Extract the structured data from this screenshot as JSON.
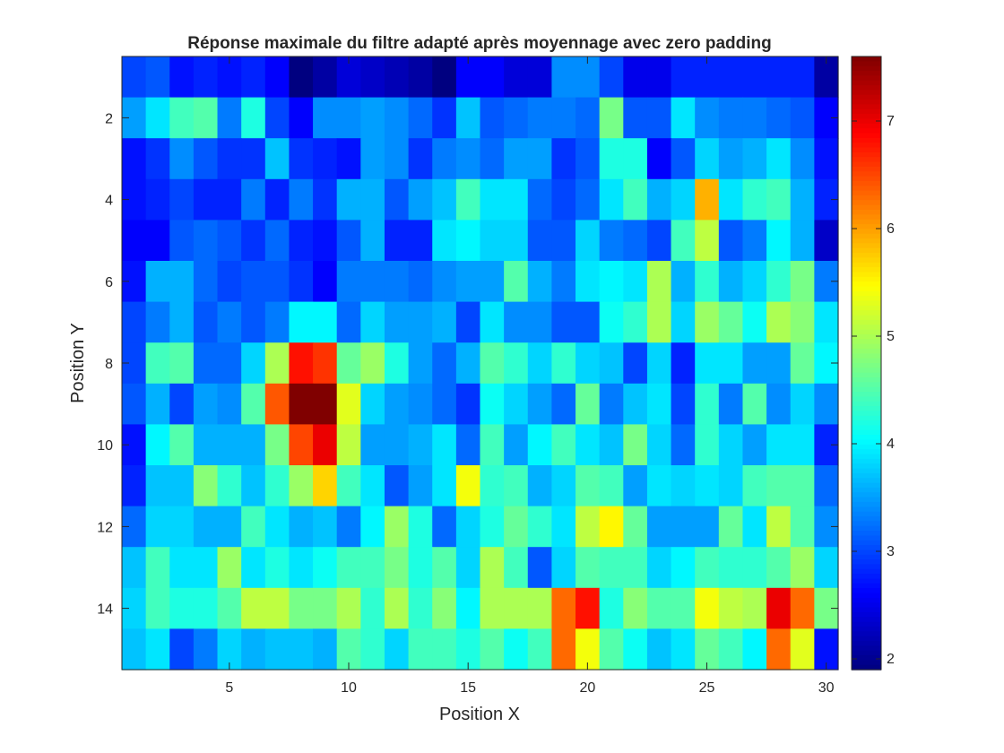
{
  "chart_data": {
    "type": "heatmap",
    "title": "Réponse maximale du filtre adapté après moyennage avec zero padding",
    "xlabel": "Position X",
    "ylabel": "Position Y",
    "x_range": [
      1,
      30
    ],
    "y_range": [
      1,
      15
    ],
    "y_direction": "reversed",
    "x_ticks": [
      "5",
      "10",
      "15",
      "20",
      "25",
      "30"
    ],
    "y_ticks": [
      "2",
      "4",
      "6",
      "8",
      "10",
      "12",
      "14"
    ],
    "colormap": "jet",
    "clim": [
      1.9,
      7.6
    ],
    "colorbar_ticks": [
      "2",
      "3",
      "4",
      "5",
      "6",
      "7"
    ],
    "grid": "off",
    "values": [
      [
        3.0,
        3.1,
        2.7,
        2.8,
        2.7,
        2.8,
        2.6,
        1.9,
        2.1,
        2.4,
        2.3,
        2.2,
        2.1,
        1.9,
        2.6,
        2.6,
        2.4,
        2.4,
        3.4,
        3.4,
        3.0,
        2.5,
        2.5,
        2.8,
        2.8,
        2.8,
        2.8,
        2.8,
        2.8,
        2.1
      ],
      [
        3.5,
        3.9,
        4.4,
        4.5,
        3.3,
        4.2,
        3.0,
        2.6,
        3.4,
        3.4,
        3.5,
        3.4,
        3.2,
        2.9,
        3.7,
        3.1,
        3.2,
        3.3,
        3.3,
        3.2,
        4.7,
        3.1,
        3.1,
        3.9,
        3.4,
        3.3,
        3.3,
        3.2,
        3.1,
        2.6
      ],
      [
        2.7,
        2.9,
        3.4,
        3.1,
        2.9,
        2.9,
        3.7,
        2.9,
        2.8,
        2.7,
        3.5,
        3.4,
        2.9,
        3.3,
        3.4,
        3.2,
        3.5,
        3.5,
        2.9,
        3.1,
        4.2,
        4.2,
        2.6,
        3.1,
        3.8,
        3.5,
        3.6,
        3.9,
        3.4,
        2.7
      ],
      [
        2.7,
        2.8,
        3.0,
        2.8,
        2.8,
        3.3,
        2.8,
        3.3,
        2.9,
        3.6,
        3.6,
        3.1,
        3.5,
        3.7,
        4.4,
        3.9,
        3.9,
        3.2,
        3.0,
        3.2,
        3.9,
        4.4,
        3.6,
        3.8,
        5.9,
        3.9,
        4.3,
        4.4,
        3.6,
        2.8
      ],
      [
        2.6,
        2.6,
        3.1,
        3.2,
        3.1,
        2.9,
        3.2,
        2.8,
        2.7,
        3.1,
        3.6,
        2.8,
        2.8,
        3.9,
        4.0,
        3.8,
        3.8,
        3.1,
        3.1,
        3.8,
        3.3,
        3.2,
        3.0,
        4.4,
        5.1,
        3.1,
        3.3,
        4.0,
        3.6,
        2.3
      ],
      [
        2.7,
        3.6,
        3.6,
        3.2,
        3.0,
        3.1,
        3.1,
        2.9,
        2.6,
        3.3,
        3.3,
        3.3,
        3.2,
        3.4,
        3.5,
        3.5,
        4.5,
        3.6,
        3.3,
        3.9,
        4.0,
        3.9,
        5.0,
        3.6,
        4.3,
        3.6,
        3.8,
        4.3,
        4.7,
        3.3
      ],
      [
        3.0,
        3.3,
        3.6,
        3.1,
        3.3,
        3.1,
        3.3,
        4.0,
        4.0,
        3.2,
        3.8,
        3.5,
        3.5,
        3.6,
        3.0,
        3.9,
        3.4,
        3.4,
        3.1,
        3.1,
        4.1,
        4.3,
        5.0,
        3.8,
        4.9,
        4.6,
        4.1,
        5.0,
        4.8,
        3.9
      ],
      [
        3.0,
        4.4,
        4.5,
        3.2,
        3.2,
        3.8,
        5.0,
        6.8,
        6.6,
        4.6,
        4.9,
        4.2,
        3.5,
        3.2,
        3.6,
        4.5,
        4.3,
        3.8,
        4.3,
        3.8,
        3.7,
        3.0,
        3.8,
        2.8,
        3.9,
        3.9,
        3.5,
        3.5,
        4.6,
        4.0
      ],
      [
        3.1,
        3.6,
        3.0,
        3.5,
        3.4,
        4.5,
        6.4,
        7.6,
        7.6,
        5.3,
        3.8,
        3.5,
        3.4,
        3.2,
        2.9,
        4.1,
        3.8,
        3.5,
        3.2,
        4.6,
        3.3,
        3.7,
        3.9,
        3.0,
        4.3,
        3.3,
        4.5,
        3.4,
        3.8,
        3.4
      ],
      [
        2.7,
        4.0,
        4.5,
        3.6,
        3.6,
        3.6,
        4.7,
        6.5,
        7.0,
        5.1,
        3.5,
        3.5,
        3.6,
        3.9,
        3.2,
        4.4,
        3.5,
        4.0,
        4.4,
        3.9,
        3.7,
        4.7,
        3.8,
        3.2,
        4.3,
        3.8,
        3.5,
        3.9,
        3.9,
        2.8
      ],
      [
        2.8,
        3.7,
        3.7,
        4.8,
        4.3,
        3.7,
        4.3,
        4.9,
        5.7,
        4.4,
        3.9,
        3.1,
        3.5,
        3.9,
        5.4,
        4.3,
        4.4,
        3.6,
        3.8,
        4.5,
        4.4,
        3.5,
        3.9,
        3.8,
        3.9,
        3.8,
        4.4,
        4.5,
        4.5,
        3.2
      ],
      [
        3.2,
        3.8,
        3.8,
        3.6,
        3.6,
        4.4,
        3.9,
        3.6,
        3.7,
        3.3,
        4.0,
        4.9,
        4.2,
        3.2,
        3.8,
        4.2,
        4.6,
        4.3,
        3.9,
        5.1,
        5.5,
        4.6,
        3.5,
        3.5,
        3.5,
        4.6,
        3.9,
        5.1,
        4.5,
        3.4
      ],
      [
        3.7,
        4.4,
        3.9,
        3.9,
        4.9,
        3.9,
        4.2,
        3.9,
        4.1,
        4.4,
        4.4,
        4.7,
        4.2,
        4.5,
        3.8,
        5.0,
        4.4,
        3.1,
        3.8,
        4.5,
        4.4,
        4.4,
        3.8,
        4.0,
        4.4,
        4.3,
        4.3,
        4.5,
        4.9,
        3.8
      ],
      [
        3.8,
        4.4,
        4.2,
        4.2,
        4.5,
        5.1,
        5.1,
        4.7,
        4.7,
        5.0,
        4.3,
        5.0,
        4.3,
        4.8,
        4.0,
        5.0,
        5.0,
        5.0,
        6.3,
        6.8,
        4.2,
        4.8,
        4.5,
        4.5,
        5.4,
        5.1,
        5.0,
        7.0,
        6.3,
        4.7
      ],
      [
        3.7,
        3.9,
        3.0,
        3.3,
        3.8,
        3.6,
        3.7,
        3.7,
        3.6,
        4.5,
        4.3,
        3.8,
        4.4,
        4.4,
        4.2,
        4.5,
        4.1,
        4.4,
        6.3,
        5.4,
        4.5,
        4.1,
        3.7,
        3.9,
        4.6,
        4.4,
        4.0,
        6.3,
        5.3,
        2.7
      ]
    ]
  }
}
